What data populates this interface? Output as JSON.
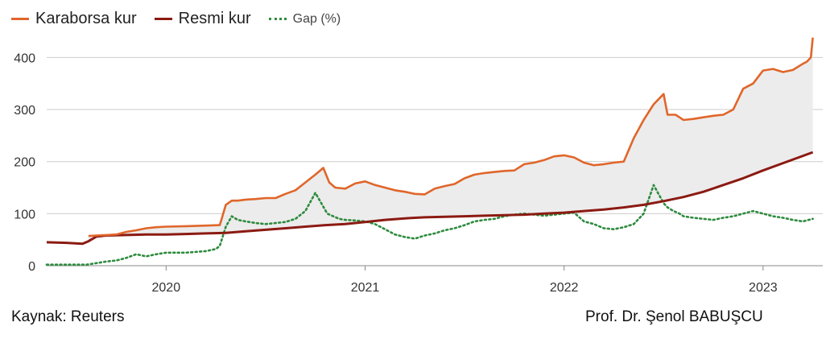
{
  "legend": {
    "karaborsa": "Karaborsa kur",
    "resmi": "Resmi kur",
    "gap": "Gap (%)"
  },
  "footer": {
    "source": "Kaynak: Reuters",
    "author": "Prof. Dr. Şenol BABUŞCU"
  },
  "colors": {
    "karaborsa": "#e0662a",
    "resmi": "#8b1a12",
    "gap": "#2e8b3e",
    "fill": "#ececec",
    "grid": "#cccccc"
  },
  "chart_data": {
    "type": "line",
    "title": "",
    "xlabel": "",
    "ylabel": "",
    "xlim": [
      2019.4,
      2023.3
    ],
    "ylim": [
      0,
      430
    ],
    "yticks": [
      0,
      100,
      200,
      300,
      400
    ],
    "xticks": [
      {
        "value": 2020.0,
        "label": "2020"
      },
      {
        "value": 2021.0,
        "label": "2021"
      },
      {
        "value": 2022.0,
        "label": "2022"
      },
      {
        "value": 2023.0,
        "label": "2023"
      }
    ],
    "grid": "horizontal",
    "legend_position": "top-left",
    "shaded_between": [
      "Resmi kur",
      "Karaborsa kur"
    ],
    "series": [
      {
        "name": "Karaborsa kur",
        "style": "solid",
        "x": [
          2019.61,
          2019.65,
          2019.7,
          2019.75,
          2019.8,
          2019.85,
          2019.9,
          2019.95,
          2020.0,
          2020.1,
          2020.2,
          2020.27,
          2020.3,
          2020.33,
          2020.36,
          2020.4,
          2020.45,
          2020.5,
          2020.55,
          2020.6,
          2020.65,
          2020.7,
          2020.75,
          2020.79,
          2020.82,
          2020.85,
          2020.9,
          2020.95,
          2021.0,
          2021.05,
          2021.1,
          2021.15,
          2021.2,
          2021.25,
          2021.3,
          2021.35,
          2021.4,
          2021.45,
          2021.5,
          2021.55,
          2021.6,
          2021.65,
          2021.7,
          2021.75,
          2021.8,
          2021.85,
          2021.9,
          2021.95,
          2022.0,
          2022.05,
          2022.1,
          2022.15,
          2022.2,
          2022.25,
          2022.3,
          2022.35,
          2022.4,
          2022.45,
          2022.5,
          2022.52,
          2022.54,
          2022.56,
          2022.58,
          2022.6,
          2022.65,
          2022.7,
          2022.75,
          2022.8,
          2022.85,
          2022.9,
          2022.95,
          2023.0,
          2023.05,
          2023.1,
          2023.15,
          2023.2,
          2023.22,
          2023.24,
          2023.25
        ],
        "values": [
          57,
          58,
          59,
          60,
          65,
          68,
          72,
          74,
          75,
          76,
          77,
          78,
          117,
          125,
          125,
          127,
          128,
          130,
          130,
          138,
          145,
          160,
          175,
          188,
          160,
          150,
          148,
          158,
          162,
          155,
          150,
          145,
          142,
          138,
          137,
          148,
          153,
          157,
          168,
          175,
          178,
          180,
          182,
          183,
          195,
          198,
          203,
          210,
          212,
          208,
          198,
          193,
          195,
          198,
          200,
          245,
          280,
          310,
          330,
          290,
          290,
          290,
          285,
          280,
          282,
          285,
          288,
          290,
          300,
          340,
          350,
          375,
          378,
          372,
          376,
          388,
          392,
          400,
          438
        ]
      },
      {
        "name": "Resmi kur",
        "style": "solid",
        "x": [
          2019.4,
          2019.5,
          2019.58,
          2019.61,
          2019.65,
          2019.7,
          2019.8,
          2019.9,
          2020.0,
          2020.1,
          2020.2,
          2020.3,
          2020.4,
          2020.5,
          2020.6,
          2020.7,
          2020.8,
          2020.9,
          2021.0,
          2021.1,
          2021.2,
          2021.3,
          2021.4,
          2021.5,
          2021.6,
          2021.7,
          2021.8,
          2021.9,
          2022.0,
          2022.1,
          2022.2,
          2022.3,
          2022.4,
          2022.5,
          2022.6,
          2022.7,
          2022.8,
          2022.9,
          2023.0,
          2023.1,
          2023.2,
          2023.25
        ],
        "values": [
          45,
          44,
          42,
          47,
          56,
          58,
          59,
          60,
          60,
          61,
          62,
          63,
          66,
          69,
          72,
          75,
          78,
          80,
          84,
          88,
          91,
          93,
          94,
          95,
          96,
          97,
          98,
          100,
          102,
          105,
          108,
          112,
          117,
          124,
          132,
          142,
          155,
          168,
          183,
          197,
          211,
          218
        ]
      },
      {
        "name": "Gap (%)",
        "style": "dotted",
        "x": [
          2019.4,
          2019.5,
          2019.6,
          2019.65,
          2019.7,
          2019.75,
          2019.8,
          2019.85,
          2019.9,
          2019.95,
          2020.0,
          2020.1,
          2020.2,
          2020.25,
          2020.27,
          2020.3,
          2020.33,
          2020.36,
          2020.4,
          2020.45,
          2020.5,
          2020.55,
          2020.6,
          2020.65,
          2020.7,
          2020.75,
          2020.78,
          2020.81,
          2020.84,
          2020.87,
          2020.9,
          2020.95,
          2021.0,
          2021.05,
          2021.1,
          2021.15,
          2021.2,
          2021.25,
          2021.3,
          2021.35,
          2021.4,
          2021.45,
          2021.5,
          2021.55,
          2021.6,
          2021.65,
          2021.7,
          2021.75,
          2021.8,
          2021.85,
          2021.9,
          2021.95,
          2022.0,
          2022.05,
          2022.1,
          2022.15,
          2022.2,
          2022.25,
          2022.3,
          2022.35,
          2022.4,
          2022.45,
          2022.5,
          2022.52,
          2022.55,
          2022.58,
          2022.6,
          2022.65,
          2022.7,
          2022.75,
          2022.8,
          2022.85,
          2022.9,
          2022.95,
          2023.0,
          2023.05,
          2023.1,
          2023.15,
          2023.2,
          2023.25
        ],
        "values": [
          2,
          2,
          2,
          5,
          8,
          10,
          15,
          22,
          18,
          22,
          25,
          25,
          28,
          32,
          38,
          75,
          95,
          88,
          85,
          82,
          80,
          82,
          84,
          90,
          105,
          140,
          120,
          100,
          95,
          90,
          88,
          87,
          85,
          80,
          70,
          60,
          55,
          52,
          58,
          62,
          68,
          72,
          78,
          85,
          88,
          90,
          95,
          98,
          100,
          98,
          96,
          98,
          100,
          102,
          85,
          80,
          72,
          70,
          74,
          80,
          100,
          155,
          120,
          112,
          105,
          100,
          95,
          92,
          90,
          88,
          92,
          95,
          100,
          105,
          100,
          95,
          92,
          88,
          85,
          90
        ]
      }
    ]
  }
}
